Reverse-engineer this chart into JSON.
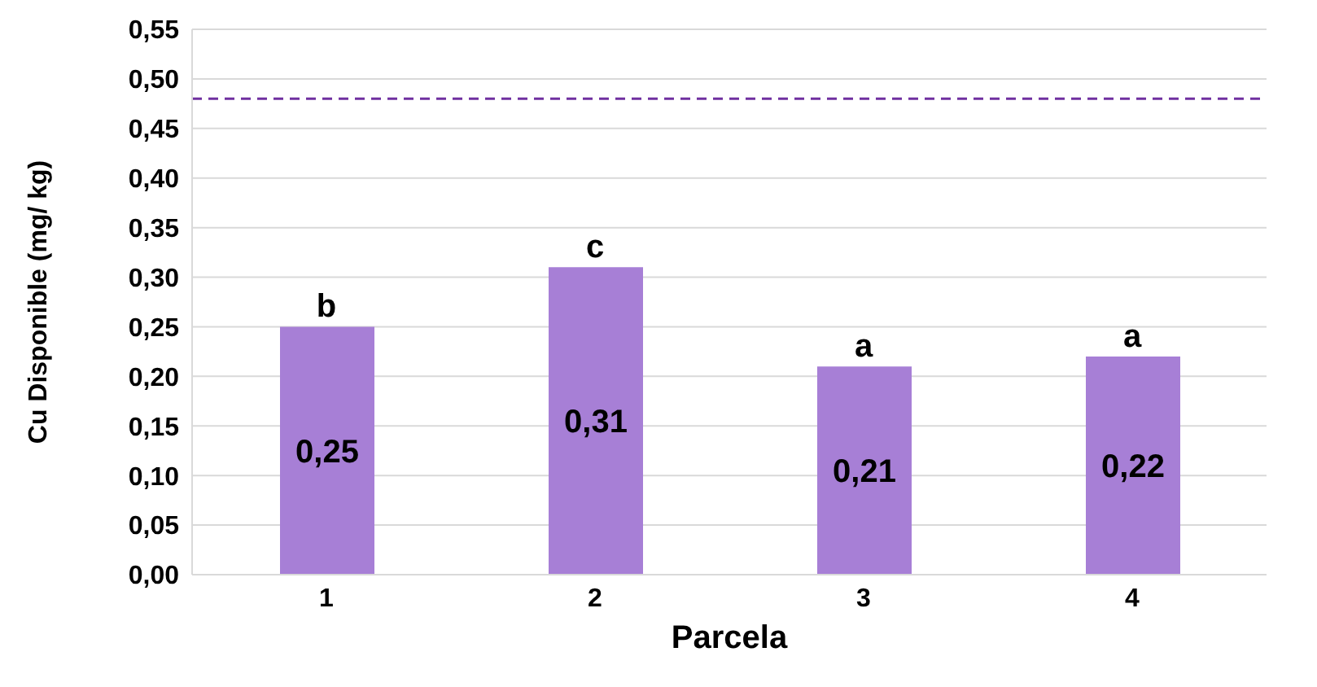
{
  "chart_data": {
    "type": "bar",
    "xlabel": "Parcela",
    "ylabel": "Cu Disponible (mg/ kg)",
    "categories": [
      "1",
      "2",
      "3",
      "4"
    ],
    "values": [
      0.25,
      0.31,
      0.21,
      0.22
    ],
    "value_labels": [
      "0,25",
      "0,31",
      "0,21",
      "0,22"
    ],
    "color": "#a77fd6",
    "ylim": [
      0,
      0.55
    ],
    "yticks": [
      {
        "value": 0,
        "label": "0,00"
      },
      {
        "value": 0.05,
        "label": "0,05"
      },
      {
        "value": 0.1,
        "label": "0,10"
      },
      {
        "value": 0.15,
        "label": "0,15"
      },
      {
        "value": 0.2,
        "label": "0,20"
      },
      {
        "value": 0.25,
        "label": "0,25"
      },
      {
        "value": 0.3,
        "label": "0,30"
      },
      {
        "value": 0.35,
        "label": "0,35"
      },
      {
        "value": 0.4,
        "label": "0,40"
      },
      {
        "value": 0.45,
        "label": "0,45"
      },
      {
        "value": 0.5,
        "label": "0,50"
      },
      {
        "value": 0.55,
        "label": "0,55"
      }
    ],
    "ref_lines": [
      {
        "axis": "y",
        "value": 0.48,
        "color": "#7030a0",
        "line_style": "dashed"
      }
    ],
    "annotations": [
      {
        "text": "b",
        "x": "1",
        "y": 0.25
      },
      {
        "text": "c",
        "x": "2",
        "y": 0.31
      },
      {
        "text": "a",
        "x": "3",
        "y": 0.21
      },
      {
        "text": "a",
        "x": "4",
        "y": 0.22
      }
    ],
    "grid": "y"
  }
}
